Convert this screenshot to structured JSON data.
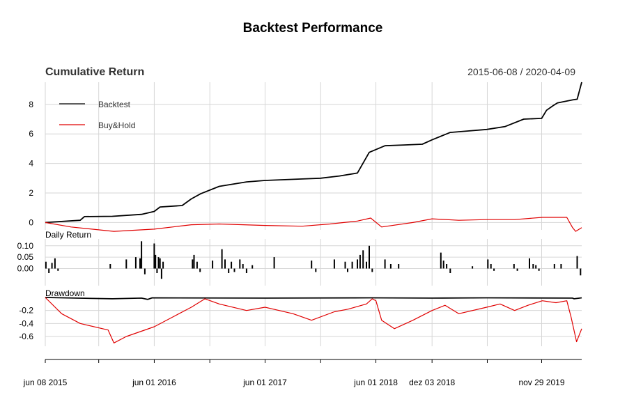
{
  "chart_data": {
    "type": "line",
    "title": "Backtest Performance",
    "subtitle": "Cumulative Return",
    "date_range": "2015-06-08 / 2020-04-09",
    "x_tick_labels": [
      "jun 08 2015",
      "jun 01 2016",
      "jun 01 2017",
      "jun 01 2018",
      "dez 03 2018",
      "nov 29 2019"
    ],
    "x_tick_dates": [
      "2015-06-08",
      "2016-06-01",
      "2017-06-01",
      "2018-06-01",
      "2018-12-03",
      "2019-11-29"
    ],
    "minor_tick_dates": [
      "2015-12-01",
      "2016-12-01",
      "2017-12-01",
      "2019-06-03"
    ],
    "x_range": [
      "2015-06-08",
      "2020-04-09"
    ],
    "grid": true,
    "legend": {
      "placement": "top-left",
      "entries": [
        "Backtest",
        "Buy&Hold"
      ]
    },
    "colors": {
      "backtest": "#000000",
      "buyhold": "#e00000"
    },
    "panels": [
      {
        "name": "Cumulative Return",
        "ylim": [
          -0.5,
          9.5
        ],
        "y_ticks": [
          0,
          2,
          4,
          6,
          8
        ],
        "series": [
          {
            "name": "Backtest",
            "x": [
              "2015-06-08",
              "2015-10-01",
              "2015-10-15",
              "2016-01-15",
              "2016-04-20",
              "2016-06-01",
              "2016-06-20",
              "2016-09-01",
              "2016-10-01",
              "2016-11-01",
              "2017-01-01",
              "2017-04-01",
              "2017-06-01",
              "2017-10-01",
              "2017-12-01",
              "2018-02-01",
              "2018-04-01",
              "2018-05-10",
              "2018-07-01",
              "2018-09-01",
              "2018-11-01",
              "2018-12-03",
              "2019-02-01",
              "2019-04-01",
              "2019-06-01",
              "2019-08-01",
              "2019-10-01",
              "2019-11-29",
              "2019-12-15",
              "2020-01-05",
              "2020-01-20",
              "2020-03-10",
              "2020-03-25",
              "2020-04-09"
            ],
            "values": [
              0.0,
              0.15,
              0.4,
              0.42,
              0.55,
              0.75,
              1.05,
              1.15,
              1.6,
              1.95,
              2.45,
              2.75,
              2.85,
              2.95,
              3.0,
              3.15,
              3.35,
              4.75,
              5.2,
              5.25,
              5.3,
              5.6,
              6.1,
              6.2,
              6.3,
              6.5,
              7.0,
              7.05,
              7.6,
              7.9,
              8.1,
              8.3,
              8.35,
              9.5
            ]
          },
          {
            "name": "Buy&Hold",
            "x": [
              "2015-06-08",
              "2015-09-01",
              "2016-01-20",
              "2016-06-01",
              "2016-10-01",
              "2017-01-01",
              "2017-06-01",
              "2017-10-01",
              "2018-01-01",
              "2018-04-01",
              "2018-05-15",
              "2018-06-20",
              "2018-10-01",
              "2018-12-03",
              "2019-03-01",
              "2019-06-01",
              "2019-09-01",
              "2019-12-01",
              "2020-02-20",
              "2020-03-10",
              "2020-03-20",
              "2020-04-09"
            ],
            "values": [
              0.0,
              -0.3,
              -0.6,
              -0.45,
              -0.15,
              -0.1,
              -0.2,
              -0.25,
              -0.1,
              0.1,
              0.3,
              -0.3,
              0.0,
              0.25,
              0.15,
              0.2,
              0.2,
              0.35,
              0.35,
              -0.35,
              -0.6,
              -0.35
            ]
          }
        ]
      },
      {
        "name": "Daily Return",
        "ylim": [
          -0.075,
          0.13
        ],
        "y_ticks": [
          0.1,
          0.05,
          0.0
        ],
        "y_tick_labels": [
          "0.10",
          "0.05",
          "0.00"
        ],
        "series": [
          {
            "name": "Backtest",
            "x": [
              "2015-06-10",
              "2015-06-20",
              "2015-06-30",
              "2015-07-10",
              "2015-07-20",
              "2016-01-08",
              "2016-03-01",
              "2016-04-01",
              "2016-04-15",
              "2016-04-20",
              "2016-05-01",
              "2016-06-01",
              "2016-06-05",
              "2016-06-10",
              "2016-06-15",
              "2016-06-20",
              "2016-06-25",
              "2016-06-30",
              "2016-10-05",
              "2016-10-10",
              "2016-10-20",
              "2016-10-30",
              "2016-12-10",
              "2017-01-10",
              "2017-01-20",
              "2017-02-01",
              "2017-02-10",
              "2017-02-20",
              "2017-03-10",
              "2017-03-20",
              "2017-04-01",
              "2017-04-20",
              "2017-07-01",
              "2017-11-01",
              "2017-11-15",
              "2018-01-15",
              "2018-02-20",
              "2018-02-28",
              "2018-03-15",
              "2018-04-01",
              "2018-04-10",
              "2018-04-20",
              "2018-05-01",
              "2018-05-10",
              "2018-05-20",
              "2018-07-01",
              "2018-07-20",
              "2018-08-15",
              "2019-01-01",
              "2019-01-10",
              "2019-01-20",
              "2019-02-01",
              "2019-04-15",
              "2019-06-05",
              "2019-06-15",
              "2019-06-25",
              "2019-08-30",
              "2019-09-10",
              "2019-10-20",
              "2019-11-01",
              "2019-11-10",
              "2019-11-20",
              "2020-01-10",
              "2020-02-01",
              "2020-03-25",
              "2020-04-05"
            ],
            "values": [
              0.03,
              -0.02,
              0.025,
              0.045,
              -0.01,
              0.02,
              0.04,
              0.05,
              0.045,
              0.12,
              -0.025,
              0.11,
              0.06,
              -0.02,
              0.05,
              0.045,
              -0.045,
              0.03,
              0.04,
              0.06,
              0.03,
              -0.015,
              0.035,
              0.085,
              0.04,
              -0.02,
              0.03,
              -0.015,
              0.04,
              0.02,
              -0.02,
              0.015,
              0.05,
              0.035,
              -0.015,
              0.04,
              0.03,
              -0.015,
              0.03,
              0.04,
              0.06,
              0.08,
              0.03,
              0.1,
              -0.015,
              0.04,
              0.02,
              0.02,
              0.07,
              0.035,
              0.02,
              -0.02,
              0.01,
              0.04,
              0.02,
              -0.01,
              0.02,
              -0.01,
              0.045,
              0.02,
              0.015,
              -0.01,
              0.02,
              0.02,
              0.055,
              -0.03
            ]
          }
        ]
      },
      {
        "name": "Drawdown",
        "ylim": [
          -0.75,
          0.0
        ],
        "y_ticks": [
          -0.2,
          -0.4,
          -0.6
        ],
        "y_tick_labels": [
          "-0.2",
          "-0.4",
          "-0.6"
        ],
        "series": [
          {
            "name": "Backtest",
            "x": [
              "2015-06-08",
              "2016-01-15",
              "2016-04-20",
              "2016-05-10",
              "2016-05-25",
              "2017-06-01",
              "2018-05-15",
              "2018-12-03",
              "2019-06-01",
              "2020-03-10",
              "2020-03-15",
              "2020-04-09"
            ],
            "values": [
              0.0,
              -0.02,
              -0.01,
              -0.03,
              -0.005,
              -0.01,
              -0.005,
              -0.01,
              -0.005,
              -0.01,
              -0.02,
              -0.005
            ]
          },
          {
            "name": "Buy&Hold",
            "x": [
              "2015-06-08",
              "2015-08-01",
              "2015-10-01",
              "2016-01-01",
              "2016-01-20",
              "2016-03-01",
              "2016-06-01",
              "2016-08-01",
              "2016-10-01",
              "2016-11-15",
              "2017-01-01",
              "2017-04-01",
              "2017-06-01",
              "2017-09-01",
              "2017-11-01",
              "2018-01-15",
              "2018-03-01",
              "2018-05-01",
              "2018-05-20",
              "2018-06-01",
              "2018-06-20",
              "2018-08-01",
              "2018-10-01",
              "2018-12-03",
              "2019-01-15",
              "2019-03-01",
              "2019-06-01",
              "2019-07-15",
              "2019-09-01",
              "2019-10-15",
              "2019-12-01",
              "2020-01-15",
              "2020-02-20",
              "2020-03-05",
              "2020-03-23",
              "2020-04-09"
            ],
            "values": [
              0.0,
              -0.25,
              -0.4,
              -0.5,
              -0.7,
              -0.6,
              -0.45,
              -0.3,
              -0.15,
              -0.02,
              -0.1,
              -0.2,
              -0.15,
              -0.25,
              -0.35,
              -0.22,
              -0.18,
              -0.1,
              -0.02,
              -0.05,
              -0.35,
              -0.48,
              -0.35,
              -0.2,
              -0.12,
              -0.25,
              -0.15,
              -0.1,
              -0.2,
              -0.12,
              -0.05,
              -0.08,
              -0.05,
              -0.3,
              -0.68,
              -0.48
            ]
          }
        ]
      }
    ]
  }
}
